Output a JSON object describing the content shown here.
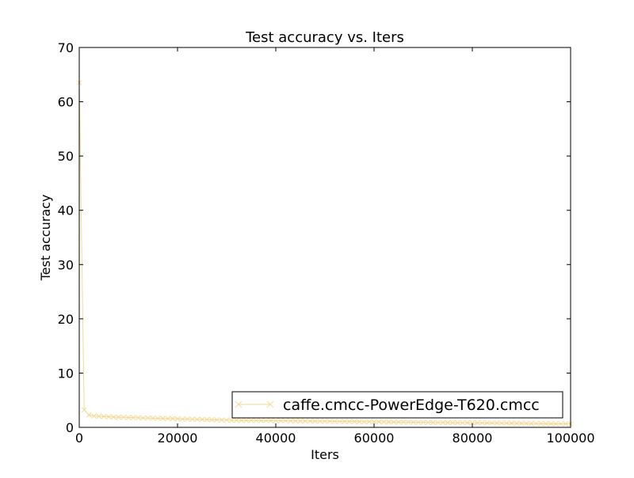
{
  "chart_data": {
    "type": "line",
    "title": "Test accuracy  vs. Iters",
    "xlabel": "Iters",
    "ylabel": "Test accuracy",
    "xlim": [
      0,
      100000
    ],
    "ylim": [
      0,
      70
    ],
    "xticks": [
      0,
      20000,
      40000,
      60000,
      80000,
      100000
    ],
    "yticks": [
      0,
      10,
      20,
      30,
      40,
      50,
      60,
      70
    ],
    "grid": false,
    "legend_position": "lower-right",
    "series": [
      {
        "name": "caffe.cmcc-PowerEdge-T620.cmcc",
        "color": "#f2d998",
        "marker": "x",
        "x": [
          0,
          1000,
          2000,
          3000,
          4000,
          5000,
          6000,
          7000,
          8000,
          9000,
          10000,
          11000,
          12000,
          13000,
          14000,
          15000,
          16000,
          17000,
          18000,
          19000,
          20000,
          21000,
          22000,
          23000,
          24000,
          25000,
          26000,
          27000,
          28000,
          29000,
          30000,
          31000,
          32000,
          33000,
          34000,
          35000,
          36000,
          37000,
          38000,
          39000,
          40000,
          41000,
          42000,
          43000,
          44000,
          45000,
          46000,
          47000,
          48000,
          49000,
          50000,
          51000,
          52000,
          53000,
          54000,
          55000,
          56000,
          57000,
          58000,
          59000,
          60000,
          61000,
          62000,
          63000,
          64000,
          65000,
          66000,
          67000,
          68000,
          69000,
          70000,
          71000,
          72000,
          73000,
          74000,
          75000,
          76000,
          77000,
          78000,
          79000,
          80000,
          81000,
          82000,
          83000,
          84000,
          85000,
          86000,
          87000,
          88000,
          89000,
          90000,
          91000,
          92000,
          93000,
          94000,
          95000,
          96000,
          97000,
          98000,
          99000,
          100000
        ],
        "y": [
          63.5,
          3.2,
          2.3,
          2.1,
          2.05,
          2.0,
          1.95,
          1.9,
          1.88,
          1.85,
          1.82,
          1.8,
          1.77,
          1.74,
          1.72,
          1.7,
          1.67,
          1.64,
          1.62,
          1.6,
          1.57,
          1.54,
          1.52,
          1.5,
          1.47,
          1.44,
          1.42,
          1.4,
          1.38,
          1.36,
          1.34,
          1.32,
          1.31,
          1.3,
          1.29,
          1.28,
          1.27,
          1.26,
          1.25,
          1.24,
          1.23,
          1.22,
          1.21,
          1.2,
          1.19,
          1.18,
          1.17,
          1.16,
          1.15,
          1.14,
          1.13,
          1.12,
          1.11,
          1.1,
          1.09,
          1.08,
          1.07,
          1.06,
          1.05,
          1.04,
          1.03,
          1.02,
          1.01,
          1.0,
          0.99,
          0.98,
          0.97,
          0.96,
          0.95,
          0.94,
          0.93,
          0.92,
          0.91,
          0.9,
          0.89,
          0.88,
          0.87,
          0.86,
          0.85,
          0.84,
          0.83,
          0.82,
          0.81,
          0.8,
          0.79,
          0.78,
          0.77,
          0.76,
          0.75,
          0.74,
          0.73,
          0.72,
          0.71,
          0.7,
          0.69,
          0.68,
          0.67,
          0.66,
          0.65,
          0.64,
          0.63
        ]
      }
    ]
  }
}
